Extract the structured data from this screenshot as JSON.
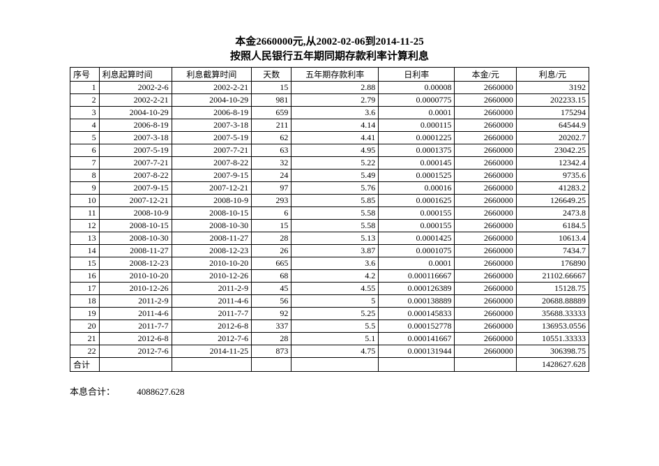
{
  "title_line1": "本金2660000元,从2002-02-06到2014-11-25",
  "title_line2": "按照人民银行五年期同期存款利率计算利息",
  "columns": [
    "序号",
    "利息起算时间",
    "利息截算时间",
    "天数",
    "五年期存款利率",
    "日利率",
    "本金/元",
    "利息/元"
  ],
  "rows": [
    [
      "1",
      "2002-2-6",
      "2002-2-21",
      "15",
      "2.88",
      "0.00008",
      "2660000",
      "3192"
    ],
    [
      "2",
      "2002-2-21",
      "2004-10-29",
      "981",
      "2.79",
      "0.0000775",
      "2660000",
      "202233.15"
    ],
    [
      "3",
      "2004-10-29",
      "2006-8-19",
      "659",
      "3.6",
      "0.0001",
      "2660000",
      "175294"
    ],
    [
      "4",
      "2006-8-19",
      "2007-3-18",
      "211",
      "4.14",
      "0.000115",
      "2660000",
      "64544.9"
    ],
    [
      "5",
      "2007-3-18",
      "2007-5-19",
      "62",
      "4.41",
      "0.0001225",
      "2660000",
      "20202.7"
    ],
    [
      "6",
      "2007-5-19",
      "2007-7-21",
      "63",
      "4.95",
      "0.0001375",
      "2660000",
      "23042.25"
    ],
    [
      "7",
      "2007-7-21",
      "2007-8-22",
      "32",
      "5.22",
      "0.000145",
      "2660000",
      "12342.4"
    ],
    [
      "8",
      "2007-8-22",
      "2007-9-15",
      "24",
      "5.49",
      "0.0001525",
      "2660000",
      "9735.6"
    ],
    [
      "9",
      "2007-9-15",
      "2007-12-21",
      "97",
      "5.76",
      "0.00016",
      "2660000",
      "41283.2"
    ],
    [
      "10",
      "2007-12-21",
      "2008-10-9",
      "293",
      "5.85",
      "0.0001625",
      "2660000",
      "126649.25"
    ],
    [
      "11",
      "2008-10-9",
      "2008-10-15",
      "6",
      "5.58",
      "0.000155",
      "2660000",
      "2473.8"
    ],
    [
      "12",
      "2008-10-15",
      "2008-10-30",
      "15",
      "5.58",
      "0.000155",
      "2660000",
      "6184.5"
    ],
    [
      "13",
      "2008-10-30",
      "2008-11-27",
      "28",
      "5.13",
      "0.0001425",
      "2660000",
      "10613.4"
    ],
    [
      "14",
      "2008-11-27",
      "2008-12-23",
      "26",
      "3.87",
      "0.0001075",
      "2660000",
      "7434.7"
    ],
    [
      "15",
      "2008-12-23",
      "2010-10-20",
      "665",
      "3.6",
      "0.0001",
      "2660000",
      "176890"
    ],
    [
      "16",
      "2010-10-20",
      "2010-12-26",
      "68",
      "4.2",
      "0.000116667",
      "2660000",
      "21102.66667"
    ],
    [
      "17",
      "2010-12-26",
      "2011-2-9",
      "45",
      "4.55",
      "0.000126389",
      "2660000",
      "15128.75"
    ],
    [
      "18",
      "2011-2-9",
      "2011-4-6",
      "56",
      "5",
      "0.000138889",
      "2660000",
      "20688.88889"
    ],
    [
      "19",
      "2011-4-6",
      "2011-7-7",
      "92",
      "5.25",
      "0.000145833",
      "2660000",
      "35688.33333"
    ],
    [
      "20",
      "2011-7-7",
      "2012-6-8",
      "337",
      "5.5",
      "0.000152778",
      "2660000",
      "136953.0556"
    ],
    [
      "21",
      "2012-6-8",
      "2012-7-6",
      "28",
      "5.1",
      "0.000141667",
      "2660000",
      "10551.33333"
    ],
    [
      "22",
      "2012-7-6",
      "2014-11-25",
      "873",
      "4.75",
      "0.000131944",
      "2660000",
      "306398.75"
    ]
  ],
  "total_label": "合计",
  "total_value": "1428627.628",
  "footer_label": "本息合计：",
  "footer_value": "4088627.628"
}
